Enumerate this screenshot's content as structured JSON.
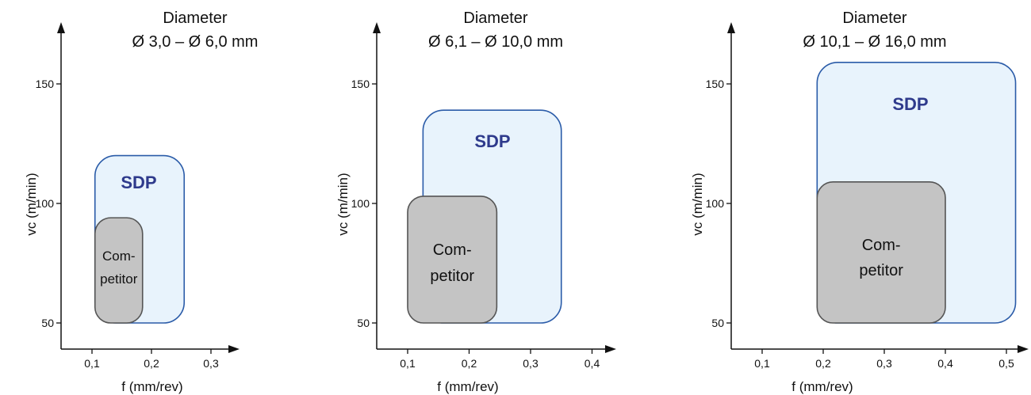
{
  "chart_data": [
    {
      "type": "area",
      "title_line1": "Diameter",
      "title_line2": "Ø 3,0 – Ø 6,0 mm",
      "xlabel": "f (mm/rev)",
      "ylabel": "vc (m/min)",
      "x_ticks": [
        "0,1",
        "0,2",
        "0,3"
      ],
      "x_tick_values": [
        0.1,
        0.2,
        0.3
      ],
      "y_ticks": [
        "50",
        "100",
        "150"
      ],
      "y_tick_values": [
        50,
        100,
        150
      ],
      "xlim": [
        0.05,
        0.34
      ],
      "ylim": [
        40,
        170
      ],
      "regions": [
        {
          "name": "SDP",
          "label": "SDP",
          "x": [
            0.105,
            0.255
          ],
          "y": [
            50,
            120
          ],
          "fill": "#e8f3fc",
          "stroke": "#2a5ba8"
        },
        {
          "name": "Competitor",
          "label_lines": [
            "Com-",
            "petitor"
          ],
          "x": [
            0.105,
            0.185
          ],
          "y": [
            50,
            94
          ],
          "fill": "#c4c4c4",
          "stroke": "#555555"
        }
      ]
    },
    {
      "type": "area",
      "title_line1": "Diameter",
      "title_line2": "Ø 6,1 – Ø 10,0 mm",
      "xlabel": "f (mm/rev)",
      "ylabel": "vc (m/min)",
      "x_ticks": [
        "0,1",
        "0,2",
        "0,3",
        "0,4"
      ],
      "x_tick_values": [
        0.1,
        0.2,
        0.3,
        0.4
      ],
      "y_ticks": [
        "50",
        "100",
        "150"
      ],
      "y_tick_values": [
        50,
        100,
        150
      ],
      "xlim": [
        0.02,
        0.46
      ],
      "ylim": [
        40,
        170
      ],
      "regions": [
        {
          "name": "SDP",
          "label": "SDP",
          "x": [
            0.125,
            0.35
          ],
          "y": [
            50,
            139
          ],
          "fill": "#e8f3fc",
          "stroke": "#2a5ba8"
        },
        {
          "name": "Competitor",
          "label_lines": [
            "Com-",
            "petitor"
          ],
          "x": [
            0.1,
            0.245
          ],
          "y": [
            50,
            103
          ],
          "fill": "#c4c4c4",
          "stroke": "#555555"
        }
      ]
    },
    {
      "type": "area",
      "title_line1": "Diameter",
      "title_line2": "Ø 10,1 – Ø 16,0 mm",
      "xlabel": "f (mm/rev)",
      "ylabel": "vc (m/min)",
      "x_ticks": [
        "0,1",
        "0,2",
        "0,3",
        "0,4",
        "0,5"
      ],
      "x_tick_values": [
        0.1,
        0.2,
        0.3,
        0.4,
        0.5
      ],
      "y_ticks": [
        "50",
        "100",
        "150"
      ],
      "y_tick_values": [
        50,
        100,
        150
      ],
      "xlim": [
        0.05,
        0.56
      ],
      "ylim": [
        40,
        170
      ],
      "regions": [
        {
          "name": "SDP",
          "label": "SDP",
          "x": [
            0.19,
            0.515
          ],
          "y": [
            50,
            159
          ],
          "fill": "#e8f3fc",
          "stroke": "#2a5ba8"
        },
        {
          "name": "Competitor",
          "label_lines": [
            "Com-",
            "petitor"
          ],
          "x": [
            0.19,
            0.4
          ],
          "y": [
            50,
            109
          ],
          "fill": "#c4c4c4",
          "stroke": "#555555"
        }
      ]
    }
  ]
}
